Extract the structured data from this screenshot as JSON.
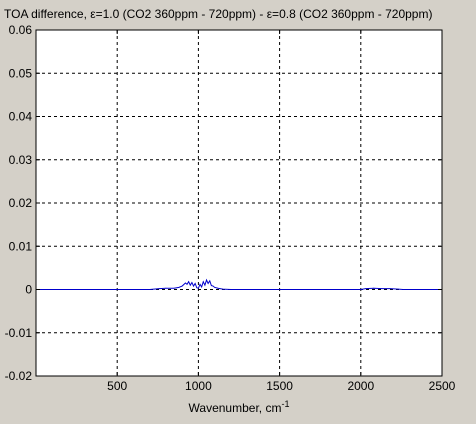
{
  "colors": {
    "figure_background": "#d4d0c8",
    "plot_background": "#ffffff",
    "series_line": "#0000cc",
    "axis": "#000000",
    "grid": "#000000"
  },
  "chart_data": {
    "type": "line",
    "title": "TOA difference, ε=1.0 (CO2 360ppm - 720ppm) - ε=0.8 (CO2 360ppm - 720ppm)",
    "xlabel": "Wavenumber, cm",
    "xlabel_superscript": "-1",
    "ylabel": "",
    "xlim": [
      0,
      2500
    ],
    "ylim": [
      -0.02,
      0.06
    ],
    "xticks": [
      500,
      1000,
      1500,
      2000,
      2500
    ],
    "yticks": [
      -0.02,
      -0.01,
      0,
      0.01,
      0.02,
      0.03,
      0.04,
      0.05,
      0.06
    ],
    "ytick_labels": [
      "-0.02",
      "-0.01",
      "0",
      "0.01",
      "0.02",
      "0.03",
      "0.04",
      "0.05",
      "0.06"
    ],
    "grid": true,
    "grid_style": "dashed",
    "series": [
      {
        "color": "#0000cc",
        "x": [
          0,
          700,
          760,
          800,
          850,
          880,
          900,
          920,
          930,
          940,
          950,
          960,
          970,
          980,
          990,
          1000,
          1010,
          1020,
          1030,
          1040,
          1050,
          1060,
          1070,
          1080,
          1090,
          1100,
          1120,
          1150,
          1200,
          2000,
          2030,
          2080,
          2130,
          2180,
          2230,
          2260,
          2500
        ],
        "y": [
          0,
          0,
          0.0002,
          0.0003,
          0.0003,
          0.0005,
          0.0008,
          0.0015,
          0.0012,
          0.0018,
          0.001,
          0.0016,
          0.0008,
          0.0014,
          0.0004,
          0.0003,
          0.0012,
          0.0006,
          0.0018,
          0.001,
          0.0022,
          0.0014,
          0.002,
          0.0009,
          0.0008,
          0.0005,
          0.0003,
          0.0001,
          0,
          0,
          0.0002,
          0.0003,
          0.0002,
          0.0002,
          0.0001,
          0,
          0
        ]
      }
    ]
  }
}
